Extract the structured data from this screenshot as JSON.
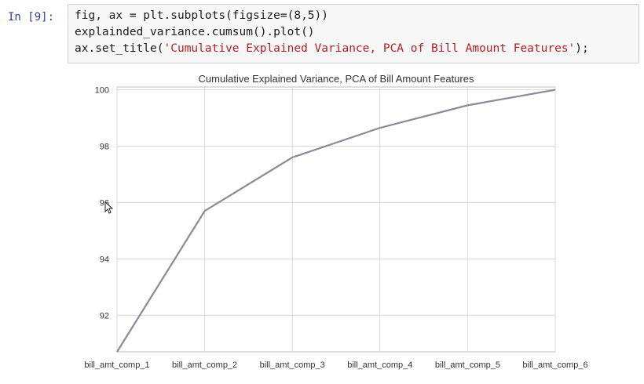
{
  "cell": {
    "prompt": "In [9]:",
    "code_lines": [
      "fig, ax = plt.subplots(figsize=(8,5))",
      "explainded_variance.cumsum().plot()",
      "ax.set_title('Cumulative Explained Variance, PCA of Bill Amount Features');"
    ]
  },
  "chart_data": {
    "type": "line",
    "title": "Cumulative Explained Variance, PCA of Bill Amount Features",
    "xlabel": "",
    "ylabel": "",
    "categories": [
      "bill_amt_comp_1",
      "bill_amt_comp_2",
      "bill_amt_comp_3",
      "bill_amt_comp_4",
      "bill_amt_comp_5",
      "bill_amt_comp_6"
    ],
    "values": [
      90.7,
      95.7,
      97.6,
      98.65,
      99.45,
      100.0
    ],
    "y_ticks": [
      92,
      94,
      96,
      98,
      100
    ],
    "ylim": [
      90.7,
      100.1
    ],
    "grid": true,
    "line_color": "#8a8a9a",
    "grid_color": "#d8d8d8"
  }
}
